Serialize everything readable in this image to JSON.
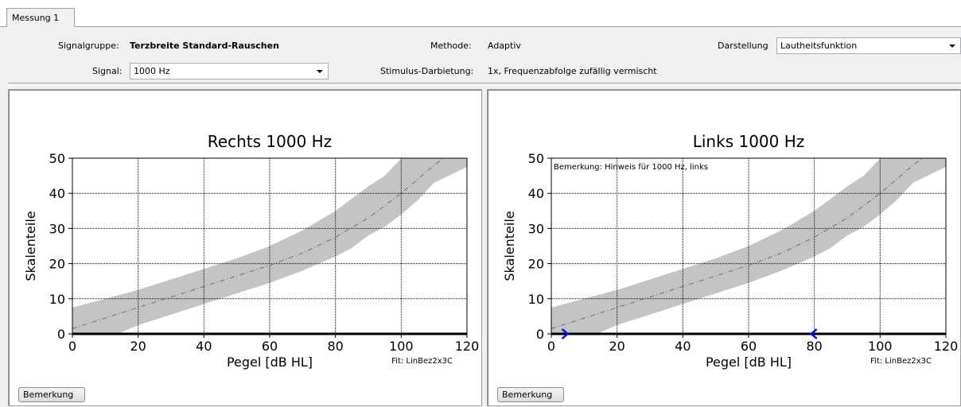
{
  "tabs": [
    {
      "label": "Messung 1"
    }
  ],
  "header": {
    "signalgruppe_label": "Signalgruppe:",
    "signalgruppe_value": "Terzbreite Standard-Rauschen",
    "signal_label": "Signal:",
    "signal_value": "1000 Hz",
    "methode_label": "Methode:",
    "methode_value": "Adaptiv",
    "stimulus_label": "Stimulus-Darbietung:",
    "stimulus_value": "1x, Frequenzabfolge zufällig vermischt",
    "darstellung_label": "Darstellung",
    "darstellung_value": "Lautheitsfunktion"
  },
  "panels": [
    {
      "bemerkung_button": "Bemerkung"
    },
    {
      "bemerkung_button": "Bemerkung"
    }
  ],
  "chart_data": [
    {
      "type": "line",
      "title": "Rechts 1000 Hz",
      "xlabel": "Pegel [dB HL]",
      "ylabel": "Skalenteile",
      "xlim": [
        0,
        120
      ],
      "ylim": [
        0,
        50
      ],
      "xticks": [
        0,
        20,
        40,
        60,
        80,
        100,
        120
      ],
      "yticks": [
        0,
        10,
        20,
        30,
        40,
        50
      ],
      "grid": true,
      "fit_label": "Fit: LinBez2x3C",
      "annotation": "",
      "series": [
        {
          "x": [
            0,
            10,
            20,
            30,
            40,
            50,
            60,
            70,
            80,
            90,
            100,
            110,
            120
          ],
          "y": [
            1.5,
            4.5,
            7.5,
            10.5,
            13.5,
            16.5,
            19.5,
            23,
            27.5,
            33,
            40,
            48,
            55
          ]
        }
      ],
      "band": {
        "x": [
          0,
          10,
          20,
          30,
          40,
          50,
          60,
          70,
          80,
          85,
          90,
          95,
          100,
          105,
          110,
          120
        ],
        "upper": [
          7.5,
          10,
          12.5,
          15.5,
          18.5,
          21.5,
          25,
          29.5,
          35,
          38.5,
          42,
          45,
          50,
          50,
          50,
          50
        ],
        "lower": [
          -4.5,
          -1.5,
          2.5,
          5.5,
          8.5,
          11.5,
          14.5,
          18,
          22,
          24.5,
          28,
          30.5,
          34,
          38,
          43,
          47.5
        ]
      },
      "markers": []
    },
    {
      "type": "line",
      "title": "Links 1000 Hz",
      "xlabel": "Pegel [dB HL]",
      "ylabel": "Skalenteile",
      "xlim": [
        0,
        120
      ],
      "ylim": [
        0,
        50
      ],
      "xticks": [
        0,
        20,
        40,
        60,
        80,
        100,
        120
      ],
      "yticks": [
        0,
        10,
        20,
        30,
        40,
        50
      ],
      "grid": true,
      "fit_label": "Fit: LinBez2x3C",
      "annotation": "Bemerkung: Hinweis für 1000 Hz, links",
      "series": [
        {
          "x": [
            0,
            10,
            20,
            30,
            40,
            50,
            60,
            70,
            80,
            90,
            100,
            110,
            120
          ],
          "y": [
            1.5,
            4.5,
            7.5,
            10.5,
            13.5,
            16.5,
            19.5,
            23,
            27.5,
            33,
            40,
            48,
            55
          ]
        }
      ],
      "band": {
        "x": [
          0,
          10,
          20,
          30,
          40,
          50,
          60,
          70,
          80,
          85,
          90,
          95,
          100,
          105,
          110,
          120
        ],
        "upper": [
          7.5,
          10,
          12.5,
          15.5,
          18.5,
          21.5,
          25,
          29.5,
          35,
          38.5,
          42,
          45,
          50,
          50,
          50,
          50
        ],
        "lower": [
          -4.5,
          -1.5,
          2.5,
          5.5,
          8.5,
          11.5,
          14.5,
          18,
          22,
          24.5,
          28,
          30.5,
          34,
          38,
          43,
          47.5
        ]
      },
      "markers": [
        {
          "x": 4,
          "y": 0,
          "direction": "right",
          "color": "#1010e0"
        },
        {
          "x": 80,
          "y": 0,
          "direction": "left",
          "color": "#1010e0"
        }
      ]
    }
  ]
}
